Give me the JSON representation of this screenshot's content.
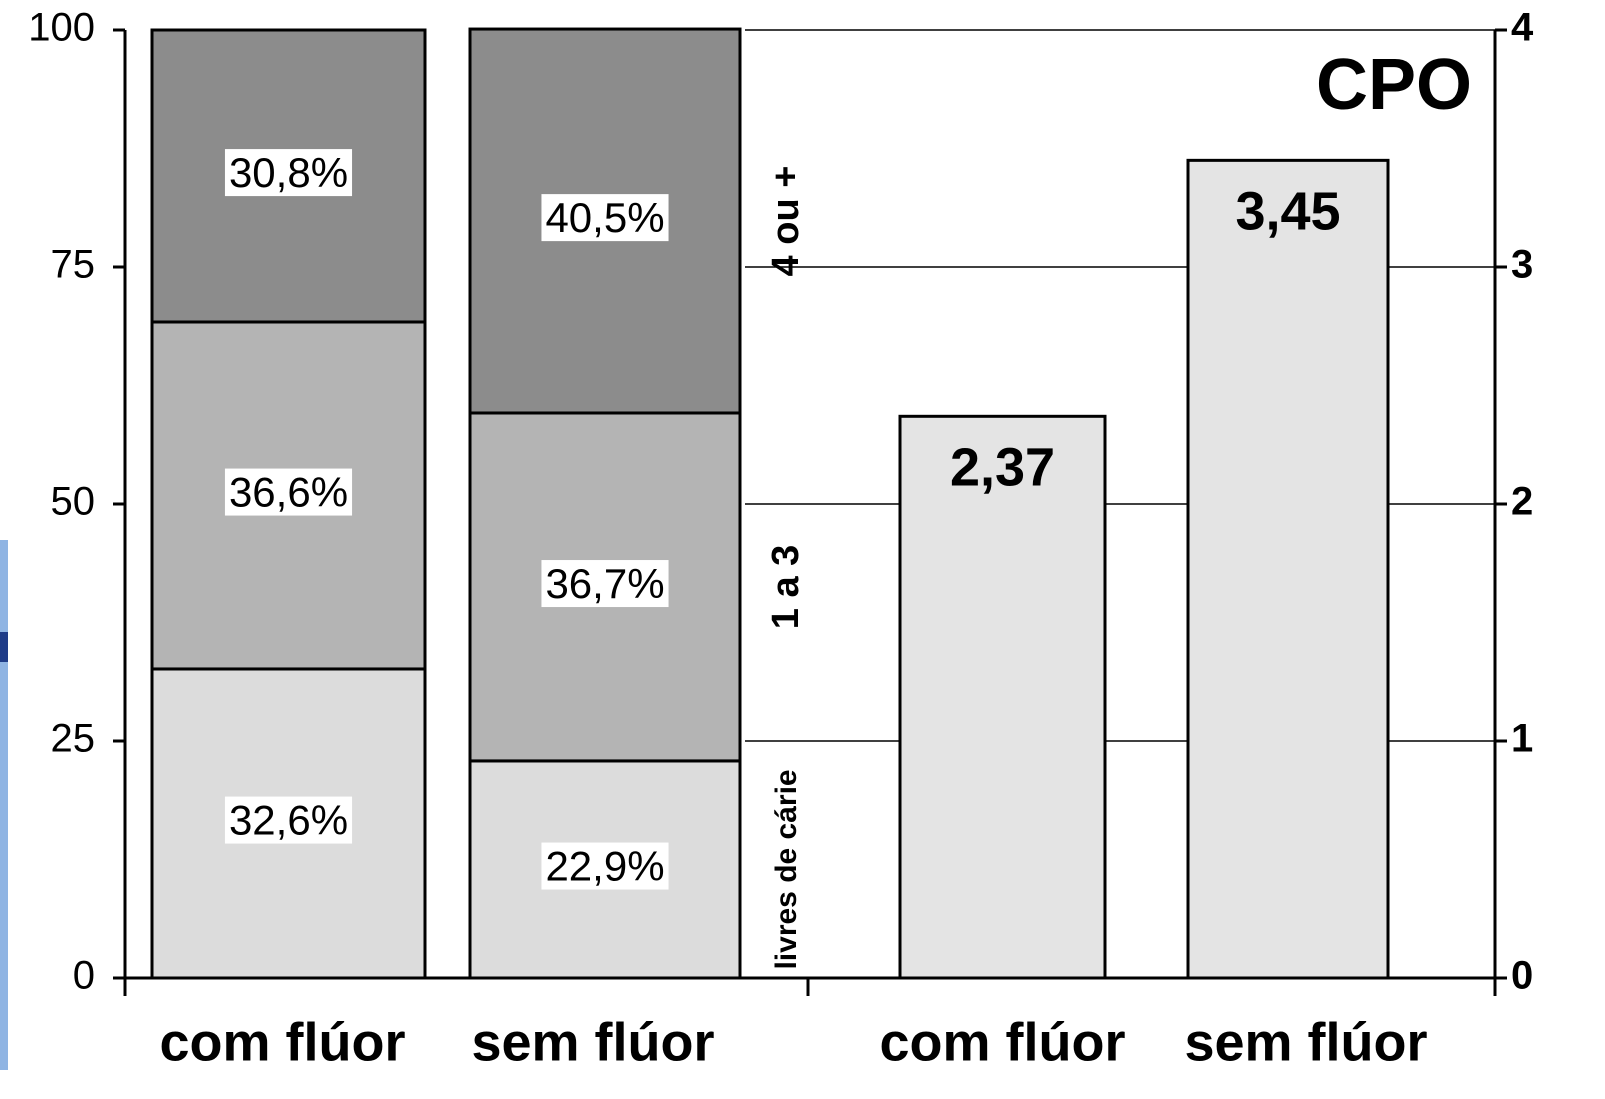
{
  "chart_data": [
    {
      "type": "stacked_bar",
      "categories": [
        "com flúor",
        "sem flúor"
      ],
      "series": [
        {
          "name": "livres de cárie",
          "color": "#dcdcdc",
          "values": [
            32.6,
            22.9
          ],
          "value_labels": [
            "32,6%",
            "22,9%"
          ]
        },
        {
          "name": "1 a 3",
          "color": "#b4b4b4",
          "values": [
            36.6,
            36.7
          ],
          "value_labels": [
            "36,6%",
            "36,7%"
          ]
        },
        {
          "name": "4 ou +",
          "color": "#8c8c8c",
          "values": [
            30.8,
            40.5
          ],
          "value_labels": [
            "30,8%",
            "40,5%"
          ]
        }
      ],
      "ylim": [
        0,
        100
      ],
      "yticks": [
        0,
        25,
        50,
        75,
        100
      ],
      "grid": false
    },
    {
      "type": "bar",
      "title": "CPO",
      "categories": [
        "com flúor",
        "sem flúor"
      ],
      "values": [
        2.37,
        3.45
      ],
      "value_labels": [
        "2,37",
        "3,45"
      ],
      "color": "#e4e4e4",
      "y2lim": [
        0,
        4
      ],
      "y2ticks": [
        0,
        1,
        2,
        3,
        4
      ],
      "grid": true
    }
  ]
}
